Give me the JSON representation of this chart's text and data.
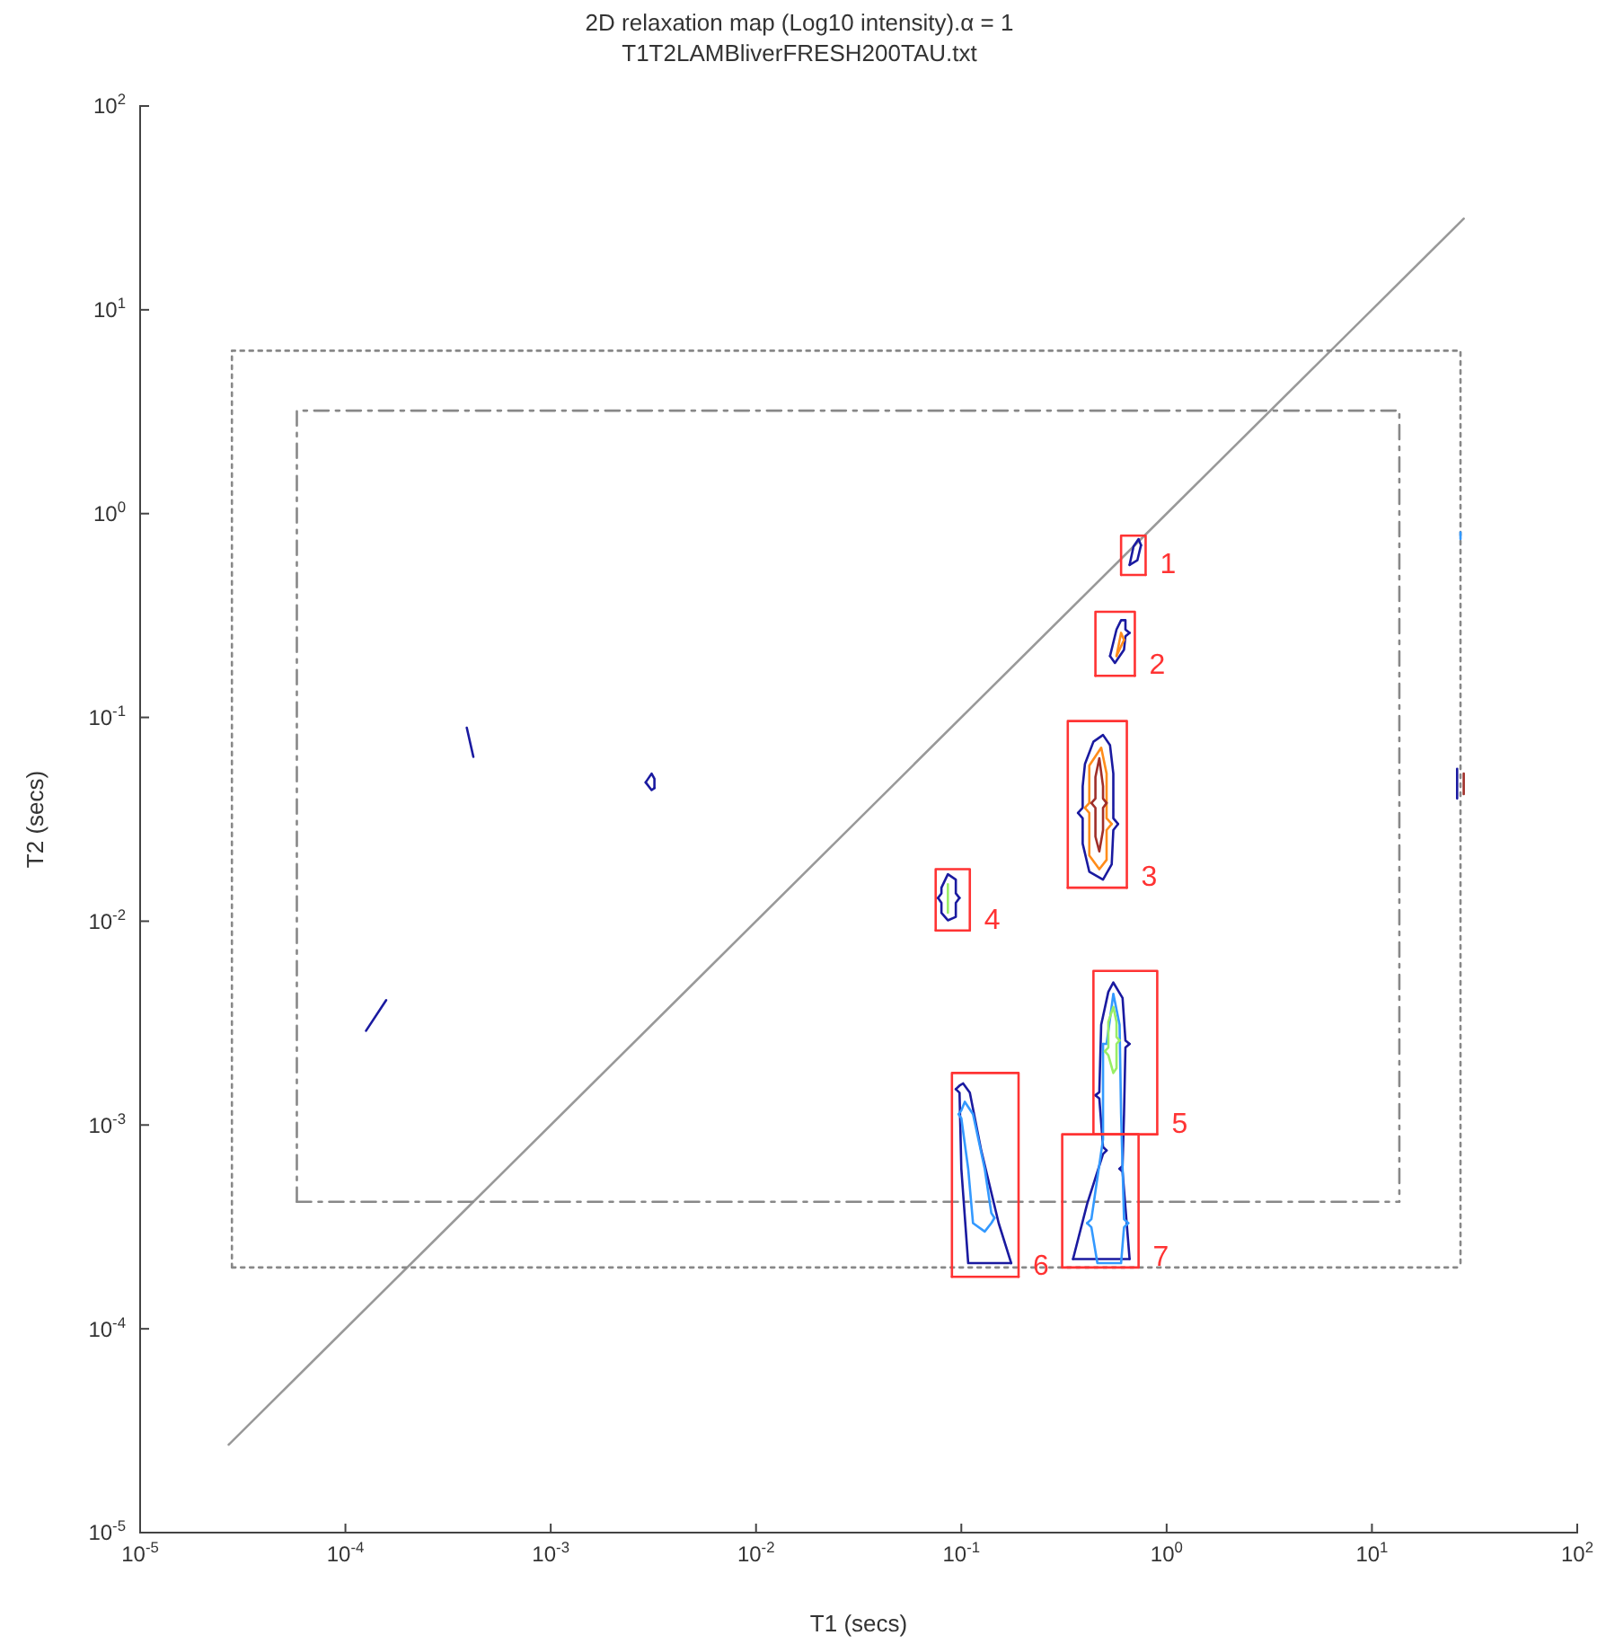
{
  "chart_data": {
    "type": "line",
    "title": "2D relaxation map (Log10 intensity).α = 1",
    "subtitle": "T1T2LAMBliverFRESH200TAU.txt",
    "xlabel": "T1 (secs)",
    "ylabel": "T2 (secs)",
    "log": "xy",
    "marker": "none",
    "xlim": [
      1e-05,
      100
    ],
    "ylim": [
      1e-05,
      100
    ],
    "xticks": [
      {
        "value": 1e-05,
        "label": "10$^{-5}$"
      },
      {
        "value": 0.0001,
        "label": "10$^{-4}$"
      },
      {
        "value": 0.001,
        "label": "10$^{-3}$"
      },
      {
        "value": 0.01,
        "label": "10$^{-2}$"
      },
      {
        "value": 0.1,
        "label": "10$^{-1}$"
      },
      {
        "value": 1,
        "label": "10$^{0}$"
      },
      {
        "value": 10,
        "label": "10$^{1}$"
      },
      {
        "value": 100,
        "label": "10$^{2}$"
      }
    ],
    "yticks": [
      {
        "value": 1e-05,
        "label": "10$^{-5}$"
      },
      {
        "value": 0.0001,
        "label": "10$^{-4}$"
      },
      {
        "value": 0.001,
        "label": "10$^{-3}$"
      },
      {
        "value": 0.01,
        "label": "10$^{-2}$"
      },
      {
        "value": 0.1,
        "label": "10$^{-1}$"
      },
      {
        "value": 1,
        "label": "10$^{0}$"
      },
      {
        "value": 10,
        "label": "10$^{1}$"
      },
      {
        "value": 100,
        "label": "10$^{2}$"
      }
    ],
    "series": [
      {
        "color": "#999999",
        "line_style": "solid",
        "x": [
          2.7e-05,
          28
        ],
        "values": [
          2.7e-05,
          28
        ]
      },
      {
        "color": "#888888",
        "line_style": "dotted",
        "x": [
          2.8e-05,
          2.8e-05,
          27,
          27
        ],
        "values": [
          0.0002,
          6.3,
          6.3,
          0.0002
        ]
      },
      {
        "color": "#888888",
        "line_style": "dotted",
        "x": [
          2.8e-05,
          27
        ],
        "values": [
          0.0002,
          0.0002
        ]
      },
      {
        "color": "#888888",
        "line_style": "dashed",
        "x": [
          5.8e-05,
          5.8e-05,
          13.6,
          13.6
        ],
        "values": [
          0.00042,
          3.2,
          3.2,
          0.00042
        ]
      },
      {
        "color": "#888888",
        "line_style": "dashed",
        "x": [
          5.8e-05,
          13.6
        ],
        "values": [
          0.00042,
          0.00042
        ]
      },
      {
        "color": "#1a1aa0",
        "x": [
          0.66,
          0.69,
          0.73,
          0.75
        ],
        "values": [
          0.56,
          0.69,
          0.75,
          0.7
        ]
      },
      {
        "color": "#1a1aa0",
        "x": [
          0.66,
          0.72,
          0.75
        ],
        "values": [
          0.56,
          0.59,
          0.7
        ]
      },
      {
        "color": "#1a1aa0",
        "x": [
          0.53,
          0.57,
          0.6,
          0.63,
          0.63,
          0.66
        ],
        "values": [
          0.2,
          0.27,
          0.3,
          0.3,
          0.27,
          0.26
        ]
      },
      {
        "color": "#1a1aa0",
        "x": [
          0.53,
          0.56,
          0.62,
          0.63,
          0.66
        ],
        "values": [
          0.2,
          0.185,
          0.215,
          0.25,
          0.26
        ]
      },
      {
        "color": "#ff8c1a",
        "x": [
          0.57,
          0.6,
          0.62
        ],
        "values": [
          0.2,
          0.26,
          0.24
        ]
      },
      {
        "color": "#ff8c1a",
        "x": [
          0.57,
          0.62
        ],
        "values": [
          0.2,
          0.24
        ]
      },
      {
        "color": "#1a1aa0",
        "x": [
          0.37,
          0.39,
          0.39,
          0.4,
          0.44,
          0.49,
          0.53,
          0.55,
          0.55,
          0.58
        ],
        "values": [
          0.034,
          0.036,
          0.046,
          0.059,
          0.076,
          0.082,
          0.073,
          0.053,
          0.032,
          0.03
        ]
      },
      {
        "color": "#1a1aa0",
        "x": [
          0.37,
          0.39,
          0.39,
          0.42,
          0.49,
          0.54,
          0.55,
          0.58
        ],
        "values": [
          0.034,
          0.032,
          0.024,
          0.0175,
          0.016,
          0.019,
          0.028,
          0.03
        ]
      },
      {
        "color": "#ff8c1a",
        "x": [
          0.4,
          0.42,
          0.42,
          0.48,
          0.51,
          0.51,
          0.54
        ],
        "values": [
          0.036,
          0.038,
          0.058,
          0.071,
          0.053,
          0.032,
          0.03
        ]
      },
      {
        "color": "#ff8c1a",
        "x": [
          0.4,
          0.42,
          0.42,
          0.47,
          0.51,
          0.51,
          0.54
        ],
        "values": [
          0.036,
          0.034,
          0.021,
          0.018,
          0.02,
          0.028,
          0.03
        ]
      },
      {
        "color": "#a0302a",
        "x": [
          0.43,
          0.45,
          0.45,
          0.47,
          0.49,
          0.49,
          0.51
        ],
        "values": [
          0.038,
          0.04,
          0.051,
          0.063,
          0.046,
          0.04,
          0.038
        ]
      },
      {
        "color": "#a0302a",
        "x": [
          0.43,
          0.45,
          0.45,
          0.47,
          0.49,
          0.49,
          0.51
        ],
        "values": [
          0.038,
          0.036,
          0.026,
          0.022,
          0.028,
          0.036,
          0.038
        ]
      },
      {
        "color": "#1a1aa0",
        "x": [
          0.077,
          0.08,
          0.08,
          0.086,
          0.094,
          0.094,
          0.098
        ],
        "values": [
          0.013,
          0.0137,
          0.0146,
          0.017,
          0.016,
          0.0137,
          0.013
        ]
      },
      {
        "color": "#1a1aa0",
        "x": [
          0.077,
          0.08,
          0.08,
          0.086,
          0.094,
          0.094,
          0.098
        ],
        "values": [
          0.013,
          0.0123,
          0.011,
          0.0101,
          0.0105,
          0.0123,
          0.013
        ]
      },
      {
        "color": "#99ee66",
        "x": [
          0.086,
          0.086
        ],
        "values": [
          0.011,
          0.0152
        ]
      },
      {
        "color": "#1a1aa0",
        "x": [
          0.45,
          0.47,
          0.48,
          0.52,
          0.55,
          0.61,
          0.63,
          0.66
        ],
        "values": [
          0.0014,
          0.00145,
          0.0031,
          0.0045,
          0.005,
          0.0042,
          0.0026,
          0.0025
        ]
      },
      {
        "color": "#1a1aa0",
        "x": [
          0.59,
          0.61,
          0.62,
          0.63,
          0.66
        ],
        "values": [
          0.00061,
          0.00063,
          0.00113,
          0.0024,
          0.0025
        ]
      },
      {
        "color": "#1a1aa0",
        "x": [
          0.59,
          0.61,
          0.66
        ],
        "values": [
          0.00061,
          0.00059,
          0.00022
        ]
      },
      {
        "color": "#1a1aa0",
        "x": [
          0.35,
          0.66
        ],
        "values": [
          0.00022,
          0.00022
        ]
      },
      {
        "color": "#1a1aa0",
        "x": [
          0.35,
          0.41,
          0.49,
          0.51
        ],
        "values": [
          0.00022,
          0.00041,
          0.00072,
          0.00075
        ]
      },
      {
        "color": "#1a1aa0",
        "x": [
          0.45,
          0.47,
          0.49,
          0.51
        ],
        "values": [
          0.0014,
          0.00135,
          0.00078,
          0.00075
        ]
      },
      {
        "color": "#3399ff",
        "x": [
          0.49,
          0.51,
          0.55,
          0.59,
          0.6,
          0.62,
          0.65
        ],
        "values": [
          0.0025,
          0.0025,
          0.0044,
          0.0031,
          0.00113,
          0.000345,
          0.00033
        ]
      },
      {
        "color": "#3399ff",
        "x": [
          0.41,
          0.43,
          0.46,
          0.6,
          0.62,
          0.65
        ],
        "values": [
          0.00033,
          0.000315,
          0.00021,
          0.00021,
          0.000315,
          0.00033
        ]
      },
      {
        "color": "#3399ff",
        "x": [
          0.41,
          0.43,
          0.49,
          0.49
        ],
        "values": [
          0.00033,
          0.000345,
          0.00085,
          0.0025
        ]
      },
      {
        "color": "#99ee66",
        "x": [
          0.5,
          0.52,
          0.52,
          0.55,
          0.57,
          0.57,
          0.59
        ],
        "values": [
          0.0023,
          0.0024,
          0.0032,
          0.0038,
          0.0032,
          0.0027,
          0.0026
        ]
      },
      {
        "color": "#99ee66",
        "x": [
          0.5,
          0.52,
          0.55,
          0.57,
          0.57,
          0.59
        ],
        "values": [
          0.0023,
          0.0022,
          0.0018,
          0.0019,
          0.0025,
          0.0026
        ]
      },
      {
        "color": "#1a1aa0",
        "x": [
          0.094,
          0.098,
          0.102,
          0.11,
          0.125,
          0.152,
          0.175
        ],
        "values": [
          0.0015,
          0.00156,
          0.0016,
          0.00144,
          0.00075,
          0.00033,
          0.00021
        ]
      },
      {
        "color": "#1a1aa0",
        "x": [
          0.094,
          0.098,
          0.1,
          0.108,
          0.175
        ],
        "values": [
          0.0015,
          0.00144,
          0.00061,
          0.00021,
          0.00021
        ]
      },
      {
        "color": "#3399ff",
        "x": [
          0.097,
          0.1,
          0.104,
          0.114,
          0.13,
          0.14,
          0.145
        ],
        "values": [
          0.00113,
          0.00118,
          0.0013,
          0.00113,
          0.00061,
          0.00037,
          0.00035
        ]
      },
      {
        "color": "#3399ff",
        "x": [
          0.097,
          0.1,
          0.108,
          0.114,
          0.13,
          0.14,
          0.145
        ],
        "values": [
          0.00113,
          0.00108,
          0.00061,
          0.00033,
          0.0003,
          0.00033,
          0.00035
        ]
      },
      {
        "color": "#1a1aa0",
        "x": [
          0.00039,
          0.00042
        ],
        "values": [
          0.089,
          0.064
        ]
      },
      {
        "color": "#1a1aa0",
        "x": [
          0.0029,
          0.0031,
          0.0032,
          0.0032
        ],
        "values": [
          0.048,
          0.053,
          0.05,
          0.045
        ]
      },
      {
        "color": "#1a1aa0",
        "x": [
          0.0029,
          0.0031,
          0.0032
        ],
        "values": [
          0.048,
          0.044,
          0.045
        ]
      },
      {
        "color": "#1a1aa0",
        "x": [
          0.000126,
          0.000158
        ],
        "values": [
          0.0029,
          0.0041
        ]
      },
      {
        "color": "#3399ff",
        "x": [
          27,
          27
        ],
        "values": [
          0.75,
          0.81
        ]
      },
      {
        "color": "#1a1aa0",
        "x": [
          26,
          26
        ],
        "values": [
          0.04,
          0.056
        ]
      },
      {
        "color": "#a0302a",
        "x": [
          28,
          28
        ],
        "values": [
          0.042,
          0.053
        ]
      },
      {
        "color": "#ff3333",
        "x": [
          0.6,
          0.6,
          0.79,
          0.79
        ],
        "values": [
          0.5,
          0.78,
          0.78,
          0.5
        ]
      },
      {
        "color": "#ff3333",
        "x": [
          0.6,
          0.79
        ],
        "values": [
          0.5,
          0.5
        ]
      },
      {
        "color": "#ff3333",
        "x": [
          0.45,
          0.45,
          0.7,
          0.7
        ],
        "values": [
          0.16,
          0.33,
          0.33,
          0.16
        ]
      },
      {
        "color": "#ff3333",
        "x": [
          0.45,
          0.7
        ],
        "values": [
          0.16,
          0.16
        ]
      },
      {
        "color": "#ff3333",
        "x": [
          0.33,
          0.33,
          0.64,
          0.64
        ],
        "values": [
          0.0146,
          0.096,
          0.096,
          0.0146
        ]
      },
      {
        "color": "#ff3333",
        "x": [
          0.33,
          0.64
        ],
        "values": [
          0.0146,
          0.0146
        ]
      },
      {
        "color": "#ff3333",
        "x": [
          0.075,
          0.075,
          0.11,
          0.11
        ],
        "values": [
          0.009,
          0.018,
          0.018,
          0.009
        ]
      },
      {
        "color": "#ff3333",
        "x": [
          0.075,
          0.11
        ],
        "values": [
          0.009,
          0.009
        ]
      },
      {
        "color": "#ff3333",
        "x": [
          0.44,
          0.44,
          0.9,
          0.9
        ],
        "values": [
          0.0009,
          0.0057,
          0.0057,
          0.0009
        ]
      },
      {
        "color": "#ff3333",
        "x": [
          0.44,
          0.9
        ],
        "values": [
          0.0009,
          0.0009
        ]
      },
      {
        "color": "#ff3333",
        "x": [
          0.09,
          0.09,
          0.19,
          0.19
        ],
        "values": [
          0.00018,
          0.0018,
          0.0018,
          0.00018
        ]
      },
      {
        "color": "#ff3333",
        "x": [
          0.09,
          0.19
        ],
        "values": [
          0.00018,
          0.00018
        ]
      },
      {
        "color": "#ff3333",
        "x": [
          0.31,
          0.31,
          0.73,
          0.73
        ],
        "values": [
          0.0002,
          0.0009,
          0.0009,
          0.0002
        ]
      },
      {
        "color": "#ff3333",
        "x": [
          0.31,
          0.73
        ],
        "values": [
          0.0002,
          0.0002
        ]
      }
    ],
    "annotations": [
      {
        "text": "1",
        "x": 0.79,
        "y": 0.5
      },
      {
        "text": "2",
        "x": 0.7,
        "y": 0.16
      },
      {
        "text": "3",
        "x": 0.64,
        "y": 0.0146
      },
      {
        "text": "4",
        "x": 0.11,
        "y": 0.009
      },
      {
        "text": "5",
        "x": 0.9,
        "y": 0.0009
      },
      {
        "text": "6",
        "x": 0.19,
        "y": 0.00018
      },
      {
        "text": "7",
        "x": 0.73,
        "y": 0.0002
      }
    ]
  }
}
